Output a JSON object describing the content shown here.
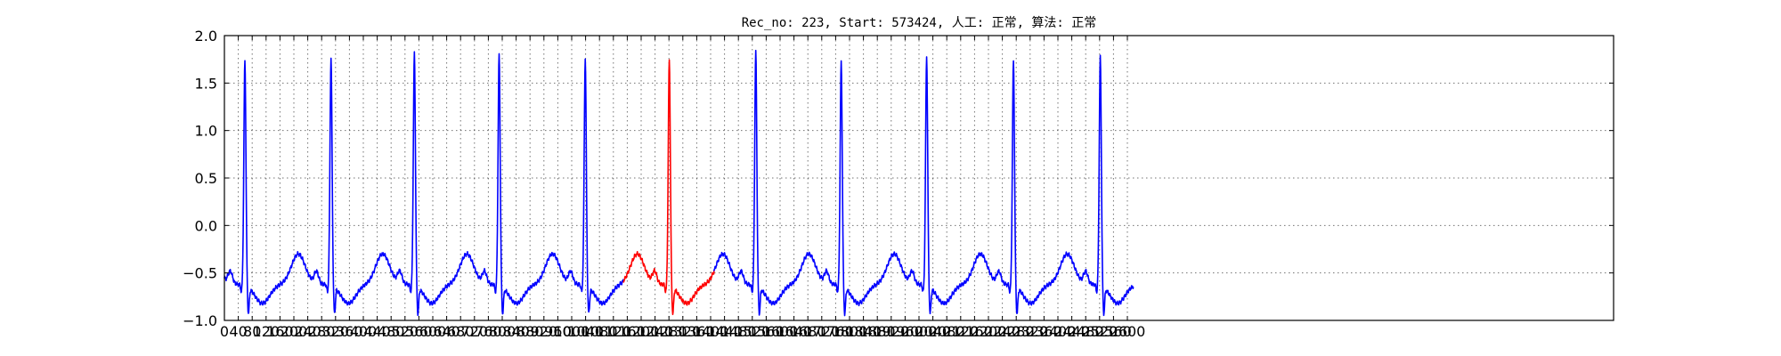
{
  "chart_data": {
    "type": "line",
    "title": "Rec_no: 223, Start: 573424, 人工: 正常, 算法: 正常",
    "xlabel": "",
    "ylabel": "",
    "xlim": [
      0,
      4000
    ],
    "ylim": [
      -1.0,
      2.0
    ],
    "grid": true,
    "x_ticks": [
      0,
      40,
      80,
      120,
      160,
      200,
      240,
      280,
      320,
      360,
      400,
      440,
      480,
      520,
      560,
      600,
      640,
      680,
      720,
      760,
      800,
      840,
      880,
      920,
      960,
      1000,
      1040,
      1080,
      1120,
      1160,
      1200,
      1240,
      1280,
      1320,
      1360,
      1400,
      1440,
      1480,
      1520,
      1560,
      1600,
      1640,
      1680,
      1720,
      1760,
      1800,
      1840,
      1880,
      1920,
      1960,
      2000,
      2040,
      2080,
      2120,
      2160,
      2200,
      2240,
      2280,
      2320,
      2360,
      2400,
      2440,
      2480,
      2520,
      2560,
      2600
    ],
    "x_tick_labels": [
      "0",
      "40",
      "80",
      "120",
      "160",
      "200",
      "240",
      "280",
      "320",
      "360",
      "400",
      "440",
      "480",
      "520",
      "560",
      "600",
      "640",
      "680",
      "720",
      "760",
      "800",
      "840",
      "880",
      "920",
      "960",
      "1000",
      "1040",
      "1080",
      "1120",
      "1160",
      "1200",
      "1240",
      "1280",
      "1320",
      "1360",
      "1400",
      "1440",
      "1480",
      "1520",
      "1560",
      "1600",
      "1640",
      "1680",
      "1720",
      "1760",
      "1800",
      "1840",
      "1880",
      "1920",
      "1960",
      "2000",
      "2040",
      "2080",
      "2120",
      "2160",
      "2200",
      "2240",
      "2280",
      "2320",
      "2360",
      "2400",
      "2440",
      "2480",
      "2520",
      "2560",
      "2600"
    ],
    "y_ticks": [
      2.0,
      1.5,
      1.0,
      0.5,
      0.0,
      -0.5,
      -1.0
    ],
    "y_tick_labels": [
      "2.0",
      "1.5",
      "1.0",
      "0.5",
      "0.0",
      "−0.5",
      "−1.0"
    ],
    "r_peaks": [
      {
        "x": 59,
        "y": 1.77
      },
      {
        "x": 307,
        "y": 1.79
      },
      {
        "x": 547,
        "y": 1.84
      },
      {
        "x": 791,
        "y": 1.83
      },
      {
        "x": 1039,
        "y": 1.79
      },
      {
        "x": 1281,
        "y": 1.78
      },
      {
        "x": 1530,
        "y": 1.86
      },
      {
        "x": 1776,
        "y": 1.75
      },
      {
        "x": 2022,
        "y": 1.81
      },
      {
        "x": 2272,
        "y": 1.77
      },
      {
        "x": 2522,
        "y": 1.8
      }
    ],
    "x_end": 2617,
    "series": [
      {
        "color": "#0000ff",
        "segment": [
          0,
          1149
        ]
      },
      {
        "color": "#ff0000",
        "segment": [
          1149,
          1410
        ]
      },
      {
        "color": "#0000ff",
        "segment": [
          1410,
          2617
        ]
      }
    ]
  }
}
